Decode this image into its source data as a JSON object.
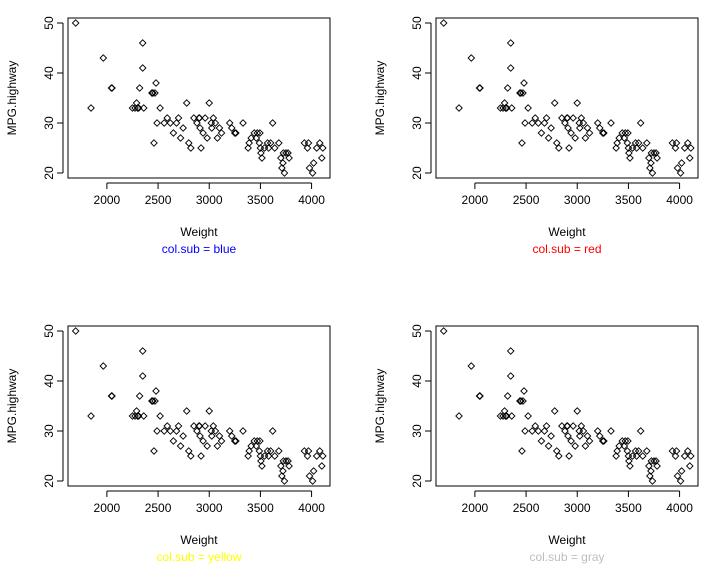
{
  "colors": {
    "blue": "#0000ff",
    "red": "#ff0000",
    "yellow": "#ffff00",
    "gray": "#bebebe",
    "axis": "#000000"
  },
  "points": [
    [
      1695,
      50
    ],
    [
      1845,
      33
    ],
    [
      1965,
      43
    ],
    [
      2045,
      37
    ],
    [
      2050,
      37
    ],
    [
      2250,
      33
    ],
    [
      2275,
      33
    ],
    [
      2290,
      34
    ],
    [
      2300,
      33
    ],
    [
      2310,
      33
    ],
    [
      2320,
      37
    ],
    [
      2350,
      46
    ],
    [
      2350,
      41
    ],
    [
      2360,
      33
    ],
    [
      2440,
      36
    ],
    [
      2450,
      36
    ],
    [
      2460,
      26
    ],
    [
      2470,
      36
    ],
    [
      2480,
      38
    ],
    [
      2490,
      30
    ],
    [
      2520,
      33
    ],
    [
      2560,
      30
    ],
    [
      2590,
      31
    ],
    [
      2620,
      30
    ],
    [
      2650,
      28
    ],
    [
      2680,
      30
    ],
    [
      2700,
      31
    ],
    [
      2720,
      27
    ],
    [
      2745,
      29
    ],
    [
      2780,
      34
    ],
    [
      2800,
      26
    ],
    [
      2820,
      25
    ],
    [
      2850,
      31
    ],
    [
      2880,
      30
    ],
    [
      2900,
      31
    ],
    [
      2905,
      31
    ],
    [
      2910,
      29
    ],
    [
      2920,
      25
    ],
    [
      2940,
      28
    ],
    [
      2960,
      31
    ],
    [
      2980,
      27
    ],
    [
      3000,
      34
    ],
    [
      3020,
      30
    ],
    [
      3025,
      29
    ],
    [
      3040,
      31
    ],
    [
      3060,
      30
    ],
    [
      3080,
      27
    ],
    [
      3100,
      29
    ],
    [
      3120,
      28
    ],
    [
      3200,
      30
    ],
    [
      3220,
      29
    ],
    [
      3250,
      28
    ],
    [
      3260,
      28
    ],
    [
      3330,
      30
    ],
    [
      3380,
      25
    ],
    [
      3390,
      26
    ],
    [
      3410,
      27
    ],
    [
      3440,
      28
    ],
    [
      3460,
      27
    ],
    [
      3470,
      28
    ],
    [
      3490,
      26
    ],
    [
      3495,
      28
    ],
    [
      3500,
      25
    ],
    [
      3505,
      24
    ],
    [
      3515,
      23
    ],
    [
      3540,
      25
    ],
    [
      3570,
      26
    ],
    [
      3580,
      25
    ],
    [
      3600,
      26
    ],
    [
      3620,
      30
    ],
    [
      3640,
      25
    ],
    [
      3680,
      26
    ],
    [
      3700,
      23
    ],
    [
      3710,
      21
    ],
    [
      3720,
      22
    ],
    [
      3725,
      24
    ],
    [
      3735,
      20
    ],
    [
      3750,
      24
    ],
    [
      3770,
      24
    ],
    [
      3780,
      23
    ],
    [
      3930,
      26
    ],
    [
      3960,
      25
    ],
    [
      3970,
      26
    ],
    [
      3980,
      21
    ],
    [
      4010,
      20
    ],
    [
      4020,
      22
    ],
    [
      4050,
      25
    ],
    [
      4080,
      26
    ],
    [
      4100,
      23
    ],
    [
      4110,
      25
    ]
  ],
  "chart_data": [
    {
      "type": "scatter",
      "title": "",
      "xlabel": "Weight",
      "ylabel": "MPG.highway",
      "sub": "col.sub = blue",
      "sub_color": "#0000ff",
      "xlim": [
        1620,
        4180
      ],
      "ylim": [
        19,
        51
      ],
      "xticks": [
        2000,
        2500,
        3000,
        3500,
        4000
      ],
      "yticks": [
        20,
        30,
        40,
        50
      ],
      "marker": "open-diamond"
    },
    {
      "type": "scatter",
      "title": "",
      "xlabel": "Weight",
      "ylabel": "MPG.highway",
      "sub": "col.sub = red",
      "sub_color": "#ff0000",
      "xlim": [
        1620,
        4180
      ],
      "ylim": [
        19,
        51
      ],
      "xticks": [
        2000,
        2500,
        3000,
        3500,
        4000
      ],
      "yticks": [
        20,
        30,
        40,
        50
      ],
      "marker": "open-diamond"
    },
    {
      "type": "scatter",
      "title": "",
      "xlabel": "Weight",
      "ylabel": "MPG.highway",
      "sub": "col.sub = yellow",
      "sub_color": "#ffff00",
      "xlim": [
        1620,
        4180
      ],
      "ylim": [
        19,
        51
      ],
      "xticks": [
        2000,
        2500,
        3000,
        3500,
        4000
      ],
      "yticks": [
        20,
        30,
        40,
        50
      ],
      "marker": "open-diamond"
    },
    {
      "type": "scatter",
      "title": "",
      "xlabel": "Weight",
      "ylabel": "MPG.highway",
      "sub": "col.sub = gray",
      "sub_color": "#bebebe",
      "xlim": [
        1620,
        4180
      ],
      "ylim": [
        19,
        51
      ],
      "xticks": [
        2000,
        2500,
        3000,
        3500,
        4000
      ],
      "yticks": [
        20,
        30,
        40,
        50
      ],
      "marker": "open-diamond"
    }
  ]
}
